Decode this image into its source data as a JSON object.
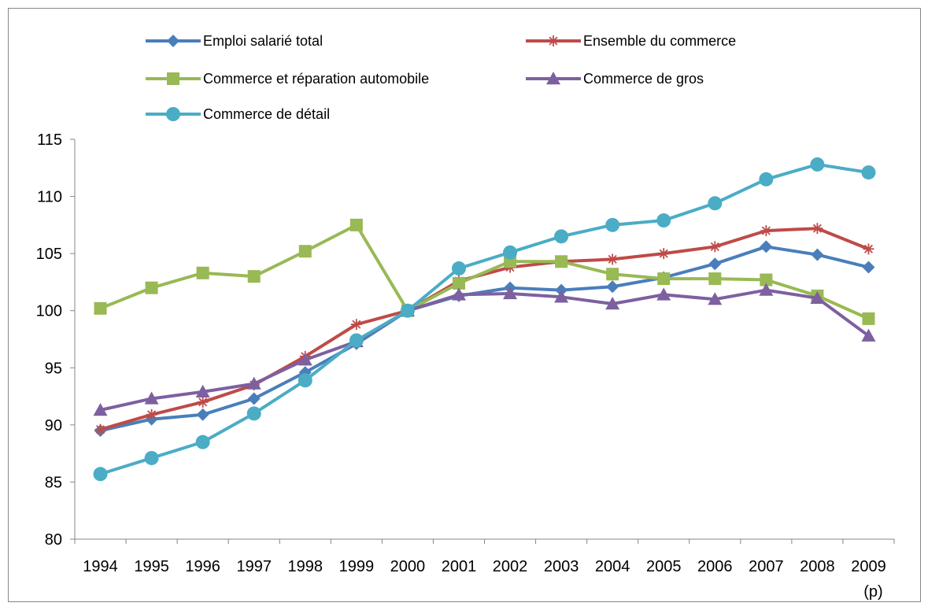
{
  "chart_data": {
    "type": "line",
    "title": "",
    "xlabel": "",
    "ylabel": "",
    "categories": [
      "1994",
      "1995",
      "1996",
      "1997",
      "1998",
      "1999",
      "2000",
      "2001",
      "2002",
      "2003",
      "2004",
      "2005",
      "2006",
      "2007",
      "2008",
      "2009"
    ],
    "category_sublabels": {
      "2009": "(p)"
    },
    "ylim": [
      80,
      115
    ],
    "yticks": [
      80,
      85,
      90,
      95,
      100,
      105,
      110,
      115
    ],
    "grid": false,
    "legend_position": "top",
    "series": [
      {
        "name": "Emploi salarié total",
        "color": "#4a7ebb",
        "marker": "diamond",
        "values": [
          89.5,
          90.5,
          90.9,
          92.3,
          94.6,
          97.1,
          100.0,
          101.3,
          102.0,
          101.8,
          102.1,
          102.9,
          104.1,
          105.6,
          104.9,
          103.8
        ]
      },
      {
        "name": "Ensemble du commerce",
        "color": "#be4b48",
        "marker": "star",
        "values": [
          89.6,
          90.9,
          92.0,
          93.5,
          96.0,
          98.8,
          100.0,
          102.6,
          103.8,
          104.3,
          104.5,
          105.0,
          105.6,
          107.0,
          107.2,
          105.4
        ]
      },
      {
        "name": "Commerce et réparation automobile",
        "color": "#98b954",
        "marker": "square",
        "values": [
          100.2,
          102.0,
          103.3,
          103.0,
          105.2,
          107.5,
          100.0,
          102.4,
          104.3,
          104.3,
          103.2,
          102.8,
          102.8,
          102.7,
          101.3,
          99.3
        ]
      },
      {
        "name": "Commerce de gros",
        "color": "#7d60a0",
        "marker": "triangle",
        "values": [
          91.3,
          92.3,
          92.9,
          93.6,
          95.7,
          97.3,
          100.0,
          101.4,
          101.5,
          101.2,
          100.6,
          101.4,
          101.0,
          101.8,
          101.1,
          97.8
        ]
      },
      {
        "name": "Commerce de détail",
        "color": "#4bacc6",
        "marker": "circle",
        "values": [
          85.7,
          87.1,
          88.5,
          91.0,
          93.9,
          97.4,
          100.0,
          103.7,
          105.1,
          106.5,
          107.5,
          107.9,
          109.4,
          111.5,
          112.8,
          112.1
        ]
      }
    ]
  }
}
